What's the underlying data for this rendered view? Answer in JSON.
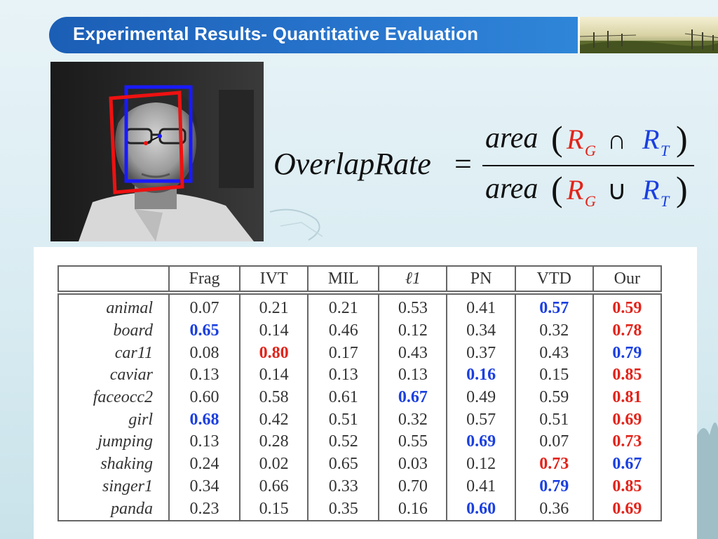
{
  "header": {
    "title": "Experimental Results- Quantitative Evaluation"
  },
  "formula": {
    "lhs": "OverlapRate",
    "equals": "=",
    "numerator": {
      "func": "area",
      "a": "R",
      "a_sub": "G",
      "op": "∩",
      "b": "R",
      "b_sub": "T"
    },
    "denominator": {
      "func": "area",
      "a": "R",
      "a_sub": "G",
      "op": "∪",
      "b": "R",
      "b_sub": "T"
    }
  },
  "colors": {
    "best": "#e2231a",
    "second": "#1a3fe0",
    "title_bar": "#1b5eb6"
  },
  "table": {
    "columns": [
      "",
      "Frag",
      "IVT",
      "MIL",
      "ℓ1",
      "PN",
      "VTD",
      "Our"
    ],
    "rows": [
      {
        "seq": "animal",
        "values": [
          "0.07",
          "0.21",
          "0.21",
          "0.53",
          "0.41",
          "0.57",
          "0.59"
        ],
        "highlight": [
          "",
          "",
          "",
          "",
          "",
          "blue",
          "red"
        ]
      },
      {
        "seq": "board",
        "values": [
          "0.65",
          "0.14",
          "0.46",
          "0.12",
          "0.34",
          "0.32",
          "0.78"
        ],
        "highlight": [
          "blue",
          "",
          "",
          "",
          "",
          "",
          "red"
        ]
      },
      {
        "seq": "car11",
        "values": [
          "0.08",
          "0.80",
          "0.17",
          "0.43",
          "0.37",
          "0.43",
          "0.79"
        ],
        "highlight": [
          "",
          "red",
          "",
          "",
          "",
          "",
          "blue"
        ]
      },
      {
        "seq": "caviar",
        "values": [
          "0.13",
          "0.14",
          "0.13",
          "0.13",
          "0.16",
          "0.15",
          "0.85"
        ],
        "highlight": [
          "",
          "",
          "",
          "",
          "blue",
          "",
          "red"
        ]
      },
      {
        "seq": "faceocc2",
        "values": [
          "0.60",
          "0.58",
          "0.61",
          "0.67",
          "0.49",
          "0.59",
          "0.81"
        ],
        "highlight": [
          "",
          "",
          "",
          "blue",
          "",
          "",
          "red"
        ]
      },
      {
        "seq": "girl",
        "values": [
          "0.68",
          "0.42",
          "0.51",
          "0.32",
          "0.57",
          "0.51",
          "0.69"
        ],
        "highlight": [
          "blue",
          "",
          "",
          "",
          "",
          "",
          "red"
        ]
      },
      {
        "seq": "jumping",
        "values": [
          "0.13",
          "0.28",
          "0.52",
          "0.55",
          "0.69",
          "0.07",
          "0.73"
        ],
        "highlight": [
          "",
          "",
          "",
          "",
          "blue",
          "",
          "red"
        ]
      },
      {
        "seq": "shaking",
        "values": [
          "0.24",
          "0.02",
          "0.65",
          "0.03",
          "0.12",
          "0.73",
          "0.67"
        ],
        "highlight": [
          "",
          "",
          "",
          "",
          "",
          "red",
          "blue"
        ]
      },
      {
        "seq": "singer1",
        "values": [
          "0.34",
          "0.66",
          "0.33",
          "0.70",
          "0.41",
          "0.79",
          "0.85"
        ],
        "highlight": [
          "",
          "",
          "",
          "",
          "",
          "blue",
          "red"
        ]
      },
      {
        "seq": "panda",
        "values": [
          "0.23",
          "0.15",
          "0.35",
          "0.16",
          "0.60",
          "0.36",
          "0.69"
        ],
        "highlight": [
          "",
          "",
          "",
          "",
          "blue",
          "",
          "red"
        ]
      }
    ]
  }
}
